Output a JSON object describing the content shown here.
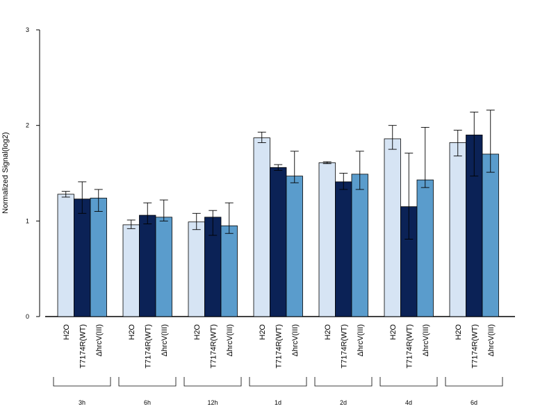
{
  "chart_data": {
    "type": "bar",
    "title": "",
    "xlabel": "",
    "ylabel": "Normalized Signal(log2)",
    "ylim": [
      0,
      3
    ],
    "yticks": [
      "0",
      "1",
      "2",
      "3"
    ],
    "grid": false,
    "groups": [
      "3h",
      "6h",
      "12h",
      "1d",
      "2d",
      "4d",
      "6d"
    ],
    "series": [
      {
        "label": "H2O",
        "color": "#d6e4f4",
        "values": [
          1.28,
          0.96,
          0.99,
          1.87,
          1.61,
          1.86,
          1.82
        ],
        "err_low": [
          1.25,
          0.92,
          0.91,
          1.82,
          1.6,
          1.75,
          1.68
        ],
        "err_high": [
          1.31,
          1.01,
          1.08,
          1.93,
          1.62,
          2.0,
          1.95
        ]
      },
      {
        "label": "T7174R(WT)",
        "color": "#0b2256",
        "values": [
          1.23,
          1.06,
          1.04,
          1.56,
          1.41,
          1.15,
          1.9
        ],
        "err_low": [
          1.08,
          0.97,
          0.85,
          1.53,
          1.33,
          0.81,
          1.47
        ],
        "err_high": [
          1.41,
          1.19,
          1.11,
          1.59,
          1.5,
          1.71,
          2.14
        ]
      },
      {
        "label": "ΔhrcV(III)",
        "color": "#5a9ccc",
        "values": [
          1.24,
          1.04,
          0.95,
          1.47,
          1.49,
          1.43,
          1.7
        ],
        "err_low": [
          1.1,
          1.0,
          0.87,
          1.4,
          1.33,
          1.35,
          1.51
        ],
        "err_high": [
          1.33,
          1.22,
          1.19,
          1.73,
          1.73,
          1.98,
          2.16
        ]
      }
    ]
  }
}
